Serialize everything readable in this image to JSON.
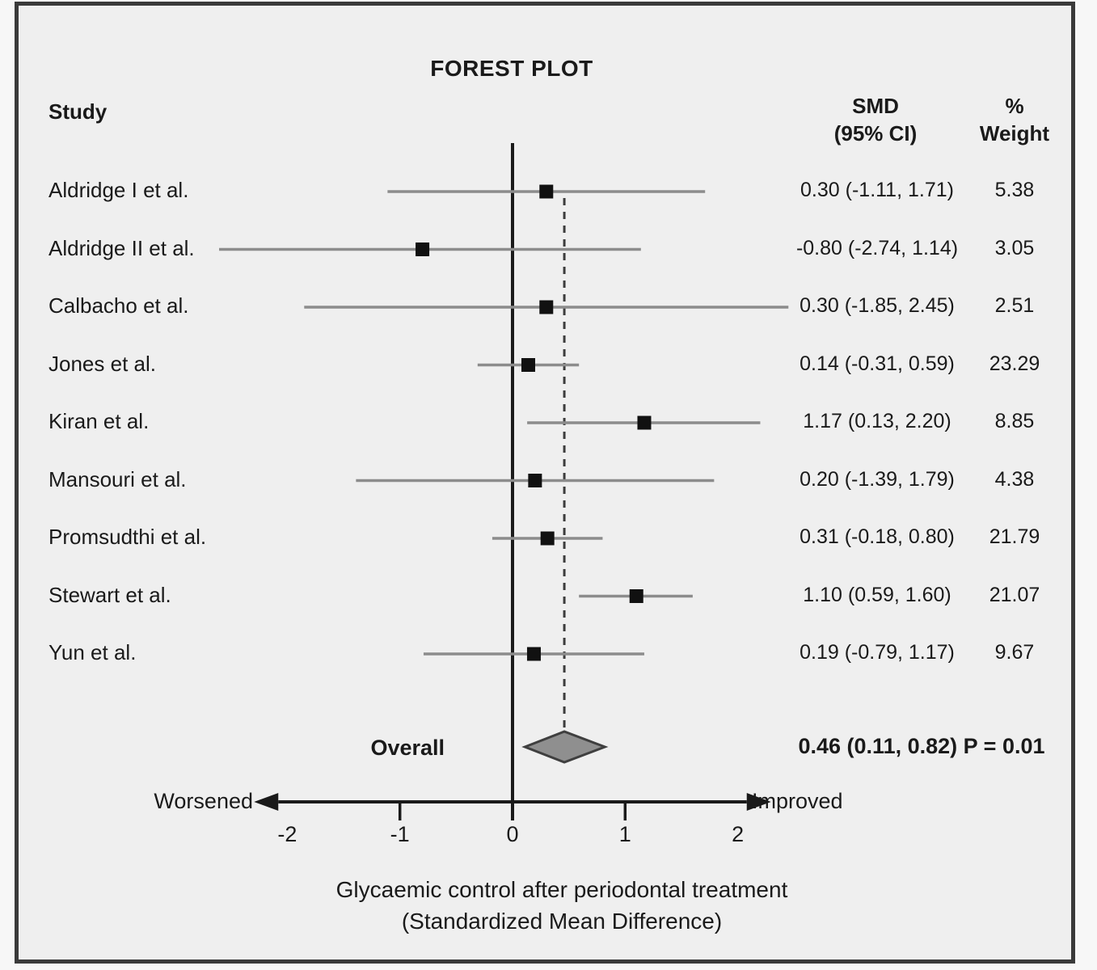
{
  "title": "FOREST PLOT",
  "columns": {
    "study": "Study",
    "smd_line1": "SMD",
    "smd_line2": "(95% CI)",
    "weight_line1": "%",
    "weight_line2": "Weight"
  },
  "chart_data": {
    "type": "forest",
    "title": "FOREST PLOT",
    "x_axis": {
      "range": [
        -2.2,
        2.2
      ],
      "ticks": [
        -2,
        -1,
        0,
        1,
        2
      ],
      "tick_labels": [
        "-2",
        "-1",
        "0",
        "1",
        "2"
      ],
      "ticks_with_marks": [
        -1,
        0,
        1
      ],
      "zero_line": 0,
      "left_label": "Worsened",
      "right_label": "Improved"
    },
    "studies": [
      {
        "name": "Aldridge I et al.",
        "smd": 0.3,
        "ci_low": -1.11,
        "ci_high": 1.71,
        "smd_label": "0.30 (-1.11, 1.71)",
        "weight": "5.38"
      },
      {
        "name": "Aldridge II et al.",
        "smd": -0.8,
        "ci_low": -2.74,
        "ci_high": 1.14,
        "smd_label": "-0.80 (-2.74, 1.14)",
        "weight": "3.05"
      },
      {
        "name": "Calbacho et al.",
        "smd": 0.3,
        "ci_low": -1.85,
        "ci_high": 2.45,
        "smd_label": "0.30 (-1.85, 2.45)",
        "weight": "2.51"
      },
      {
        "name": "Jones et al.",
        "smd": 0.14,
        "ci_low": -0.31,
        "ci_high": 0.59,
        "smd_label": "0.14 (-0.31, 0.59)",
        "weight": "23.29"
      },
      {
        "name": "Kiran et al.",
        "smd": 1.17,
        "ci_low": 0.13,
        "ci_high": 2.2,
        "smd_label": "1.17 (0.13, 2.20)",
        "weight": "8.85"
      },
      {
        "name": "Mansouri et al.",
        "smd": 0.2,
        "ci_low": -1.39,
        "ci_high": 1.79,
        "smd_label": "0.20 (-1.39, 1.79)",
        "weight": "4.38"
      },
      {
        "name": "Promsudthi et al.",
        "smd": 0.31,
        "ci_low": -0.18,
        "ci_high": 0.8,
        "smd_label": "0.31 (-0.18, 0.80)",
        "weight": "21.79"
      },
      {
        "name": "Stewart et al.",
        "smd": 1.1,
        "ci_low": 0.59,
        "ci_high": 1.6,
        "smd_label": "1.10 (0.59, 1.60)",
        "weight": "21.07"
      },
      {
        "name": "Yun et al.",
        "smd": 0.19,
        "ci_low": -0.79,
        "ci_high": 1.17,
        "smd_label": "0.19 (-0.79, 1.17)",
        "weight": "9.67"
      }
    ],
    "overall": {
      "label": "Overall",
      "smd": 0.46,
      "ci_low": 0.11,
      "ci_high": 0.82,
      "smd_label": "0.46 (0.11, 0.82) P = 0.01"
    },
    "caption_line1": "Glycaemic control after periodontal treatment",
    "caption_line2": "(Standardized Mean Difference)"
  },
  "colors": {
    "background": "#efefef",
    "frame_border": "#3a3a3a",
    "ci_line": "#8c8c8c",
    "marker": "#111111",
    "diamond_fill": "#8f8f8f",
    "diamond_stroke": "#3f3f3f",
    "axis": "#1a1a1a",
    "dashed_line": "#3c3c3c"
  }
}
